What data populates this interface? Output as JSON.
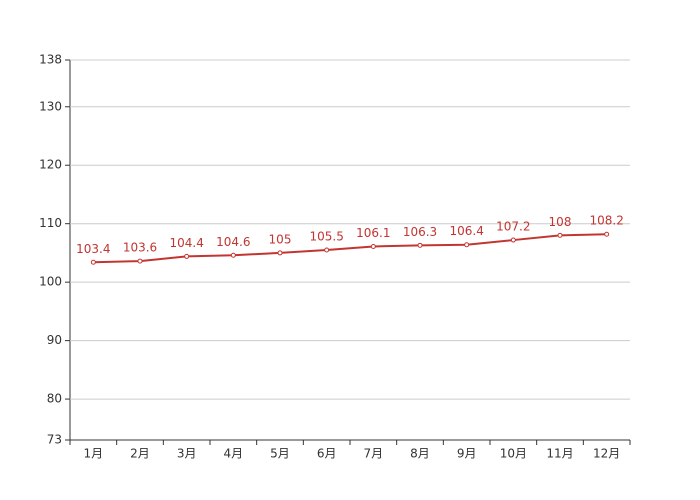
{
  "chart_data": {
    "type": "line",
    "categories": [
      "1月",
      "2月",
      "3月",
      "4月",
      "5月",
      "6月",
      "7月",
      "8月",
      "9月",
      "10月",
      "11月",
      "12月"
    ],
    "values": [
      103.4,
      103.6,
      104.4,
      104.6,
      105,
      105.5,
      106.1,
      106.3,
      106.4,
      107.2,
      108,
      108.2
    ],
    "color": "#c23531",
    "ylim": [
      73,
      138
    ],
    "yticks": [
      73,
      80,
      90,
      100,
      110,
      120,
      130,
      138
    ],
    "grid": true
  }
}
